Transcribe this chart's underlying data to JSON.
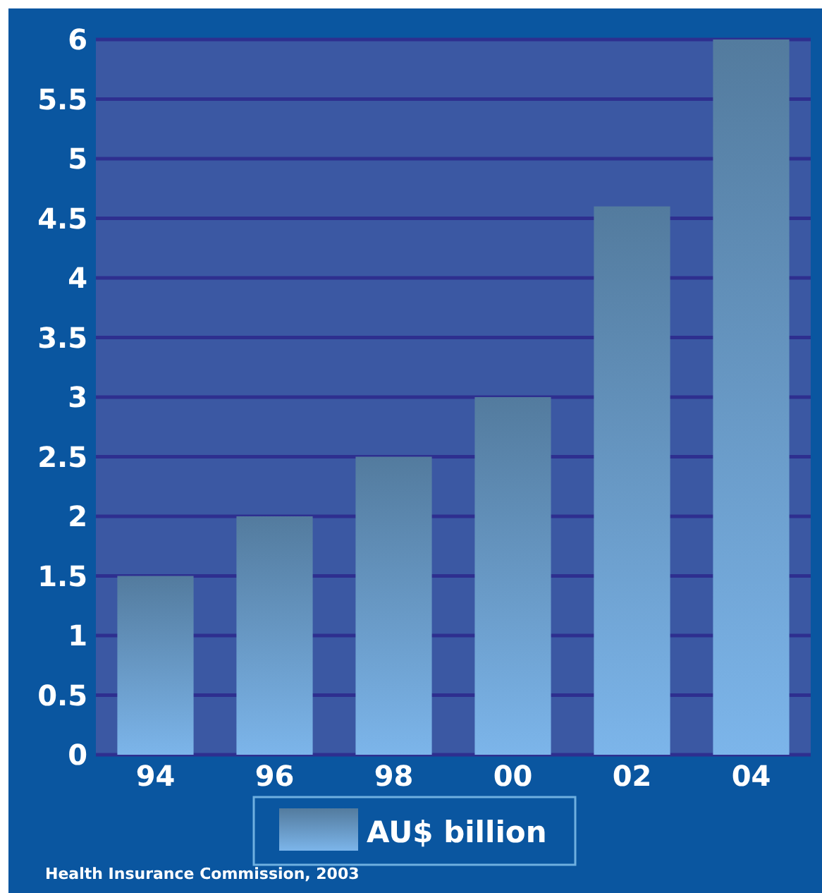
{
  "chart_data": {
    "type": "bar",
    "categories": [
      "94",
      "96",
      "98",
      "00",
      "02",
      "04"
    ],
    "series": [
      {
        "name": "AU$ billion",
        "color": "#6fa3d2",
        "values": [
          1.5,
          2,
          2.5,
          3,
          4.6,
          6
        ]
      }
    ],
    "ylim": [
      0,
      6
    ],
    "yticks": [
      0,
      0.5,
      1,
      1.5,
      2,
      2.5,
      3,
      3.5,
      4,
      4.5,
      5,
      5.5,
      6
    ],
    "grid": "y",
    "legend": "bottom",
    "annotations": [
      "Health Insurance Commission, 2003"
    ]
  }
}
